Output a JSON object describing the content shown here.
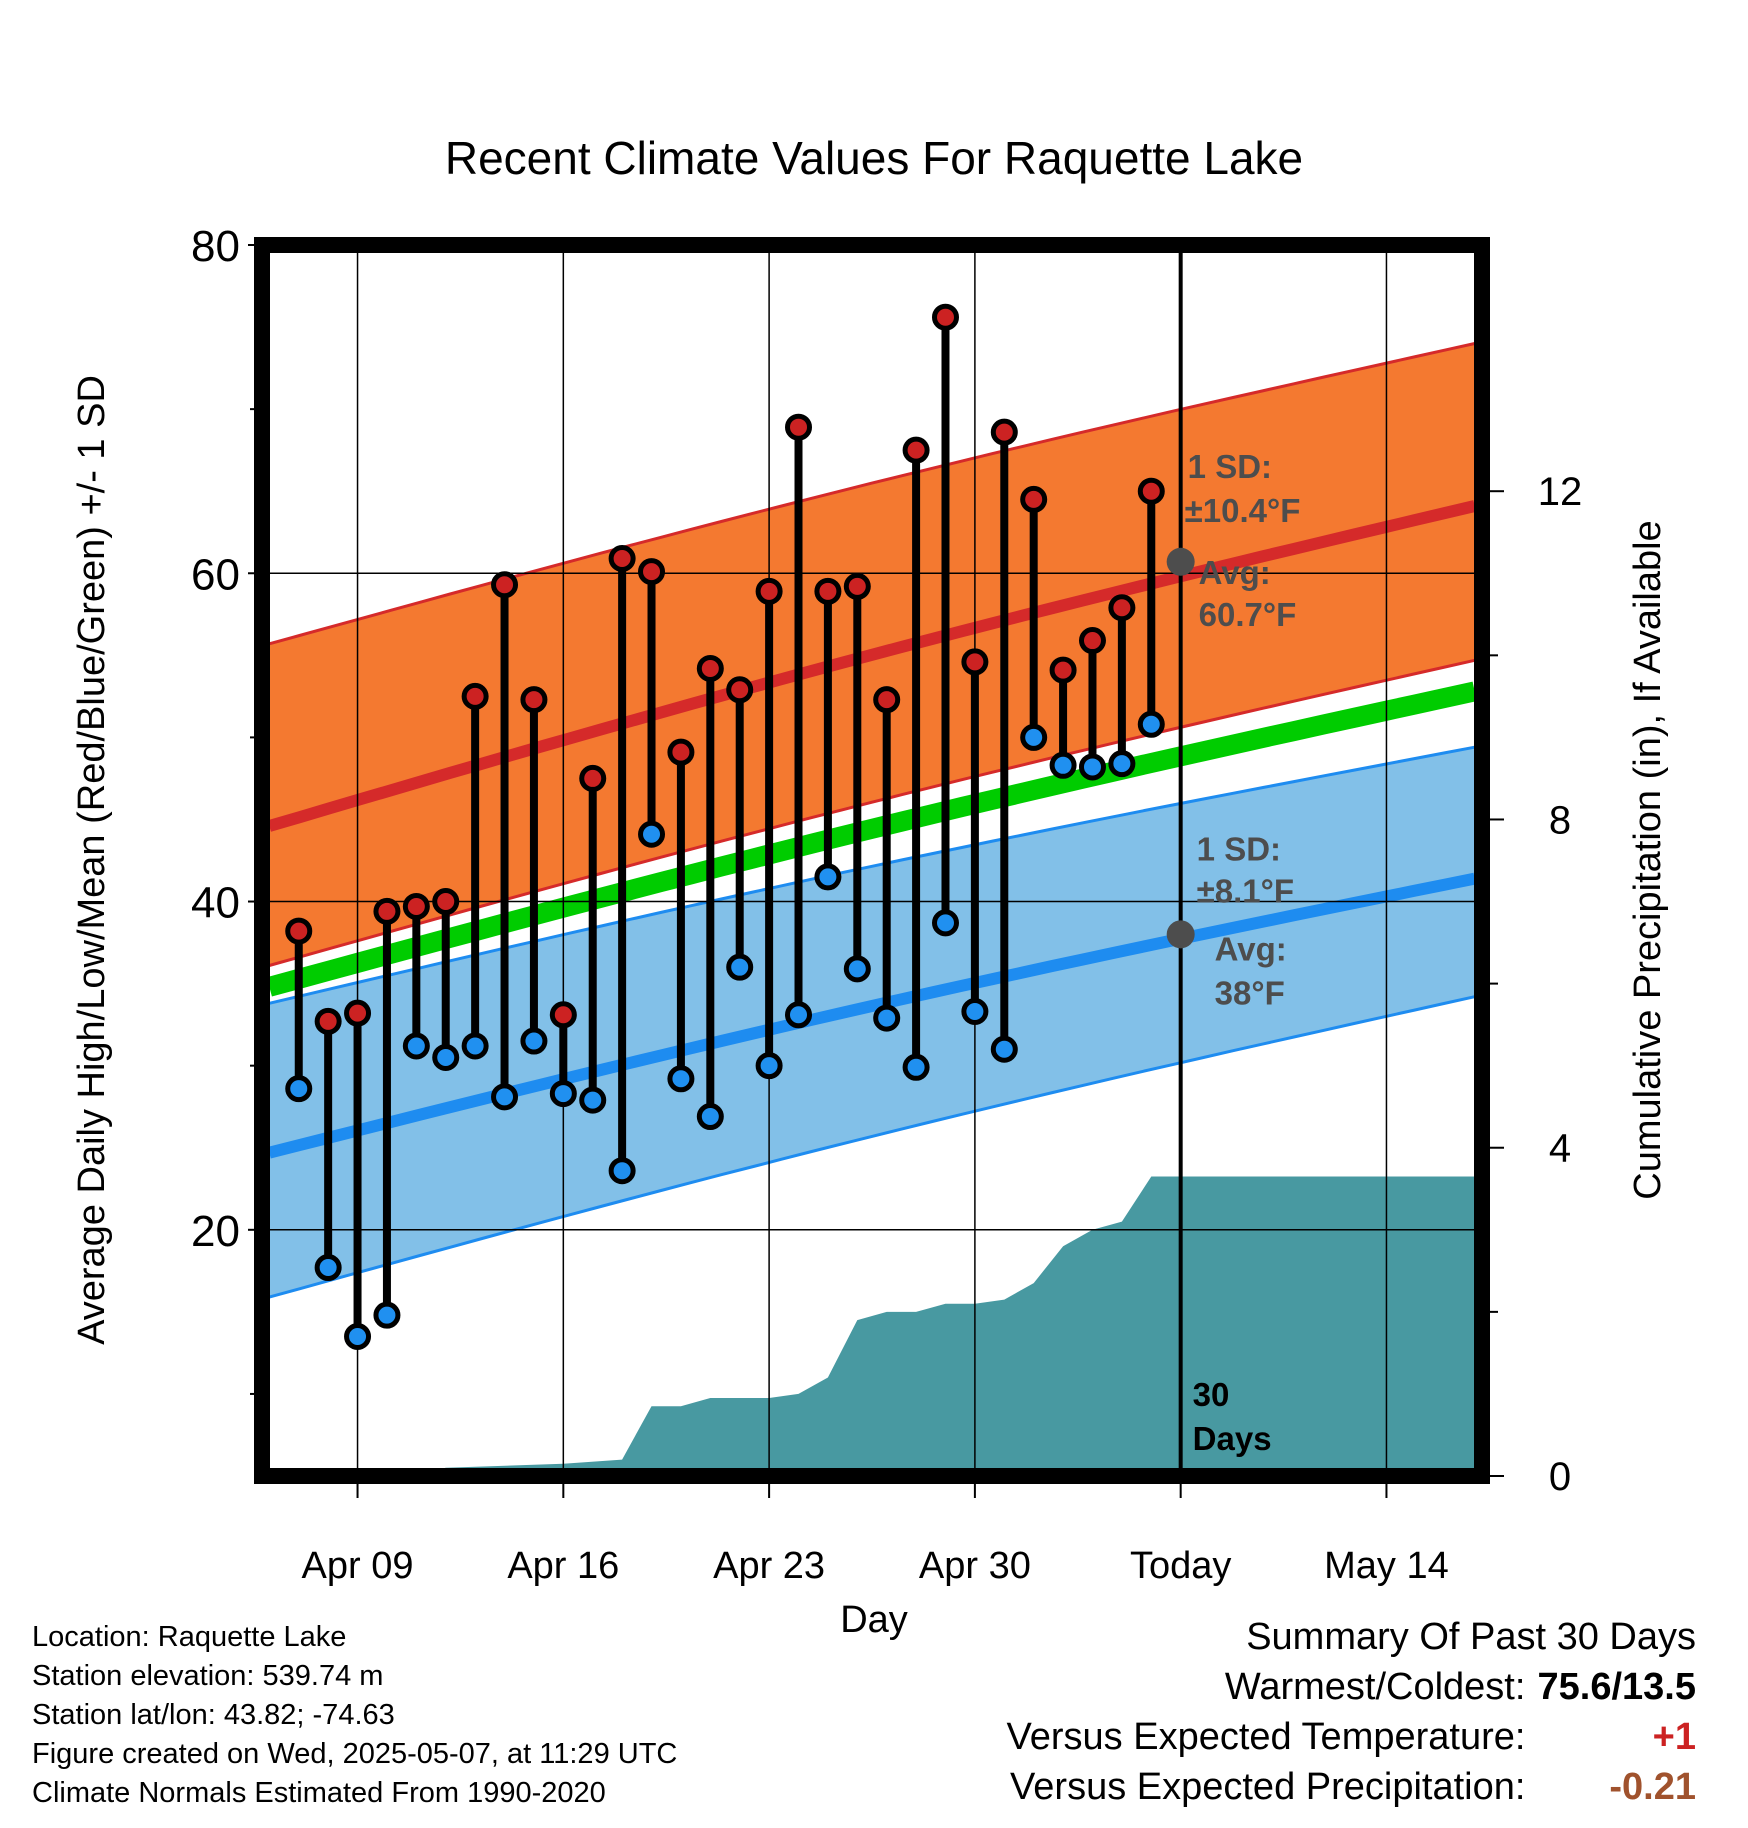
{
  "chart_data": {
    "type": "line",
    "title": "Recent Climate Values For Raquette Lake",
    "xlabel": "Day",
    "ylabel": "Average Daily High/Low/Mean (Red/Blue/Green) +/- 1 SD",
    "y2label": "Cumulative Precipitation (in), If Available",
    "ylim": [
      5,
      80
    ],
    "y_ticks": [
      "20",
      "40",
      "60",
      "80"
    ],
    "y2lim": [
      0,
      15
    ],
    "y2_ticks": [
      "0",
      "4",
      "8",
      "12"
    ],
    "x_tick_labels": [
      "Apr 09",
      "Apr 16",
      "Apr 23",
      "Apr 30",
      "Today",
      "May 14"
    ],
    "days_observed": [
      "2025-04-07",
      "2025-04-08",
      "2025-04-09",
      "2025-04-10",
      "2025-04-11",
      "2025-04-12",
      "2025-04-13",
      "2025-04-14",
      "2025-04-15",
      "2025-04-16",
      "2025-04-17",
      "2025-04-18",
      "2025-04-19",
      "2025-04-20",
      "2025-04-21",
      "2025-04-22",
      "2025-04-23",
      "2025-04-24",
      "2025-04-25",
      "2025-04-26",
      "2025-04-27",
      "2025-04-28",
      "2025-04-29",
      "2025-04-30",
      "2025-05-01",
      "2025-05-02",
      "2025-05-03",
      "2025-05-04",
      "2025-05-05",
      "2025-05-06"
    ],
    "daily_high": [
      38.2,
      32.7,
      33.2,
      39.4,
      39.7,
      40.0,
      52.5,
      59.3,
      52.3,
      33.1,
      47.5,
      60.9,
      60.1,
      49.1,
      54.2,
      52.9,
      58.9,
      68.9,
      58.9,
      59.2,
      52.3,
      67.5,
      75.6,
      54.6,
      68.6,
      64.5,
      54.1,
      55.9,
      57.9,
      65.0
    ],
    "daily_low": [
      28.6,
      17.7,
      13.5,
      14.8,
      31.2,
      30.5,
      31.2,
      28.1,
      31.5,
      28.3,
      27.9,
      23.6,
      44.1,
      29.2,
      26.9,
      36.0,
      30.0,
      33.1,
      41.5,
      35.9,
      32.9,
      29.9,
      38.7,
      33.3,
      31.0,
      50.0,
      48.3,
      48.2,
      48.4,
      50.8
    ],
    "normal_days": [
      "2025-04-06",
      "2025-05-17"
    ],
    "normal_high": [
      44.6,
      64.1
    ],
    "normal_high_sd_upper": [
      55.7,
      74.0
    ],
    "normal_high_sd_lower": [
      36.1,
      54.7
    ],
    "normal_mean": [
      34.8,
      52.8
    ],
    "normal_low": [
      24.7,
      41.4
    ],
    "normal_low_sd_upper": [
      33.8,
      49.4
    ],
    "normal_low_sd_lower": [
      15.9,
      34.2
    ],
    "precip_days": [
      "2025-04-06",
      "2025-04-11",
      "2025-04-12",
      "2025-04-16",
      "2025-04-18",
      "2025-04-19",
      "2025-04-20",
      "2025-04-21",
      "2025-04-22",
      "2025-04-23",
      "2025-04-24",
      "2025-04-25",
      "2025-04-26",
      "2025-04-27",
      "2025-04-28",
      "2025-04-29",
      "2025-04-30",
      "2025-05-01",
      "2025-05-02",
      "2025-05-03",
      "2025-05-04",
      "2025-05-05",
      "2025-05-06",
      "2025-05-17"
    ],
    "precip_cumulative": [
      0.0,
      0.0,
      0.1,
      0.15,
      0.2,
      0.85,
      0.85,
      0.95,
      0.95,
      0.95,
      1.0,
      1.2,
      1.9,
      2.0,
      2.0,
      2.1,
      2.1,
      2.15,
      2.35,
      2.8,
      3.0,
      3.1,
      3.65,
      3.65
    ],
    "high_annotation": {
      "sd_label": "1 SD:",
      "sd_value": "±10.4°F",
      "avg_label": "Avg:",
      "avg_value": "60.7°F",
      "avg": 60.7
    },
    "low_annotation": {
      "sd_label": "1 SD:",
      "sd_value": "±8.1°F",
      "avg_label": "Avg:",
      "avg_value": "38°F",
      "avg": 38.0
    },
    "period_label": [
      "30",
      "Days"
    ],
    "colors": {
      "high_band": "#f47930",
      "high_line": "#d52a2a",
      "low_band": "#82c0e8",
      "low_line": "#1e8cf0",
      "mean_line": "#00cc00",
      "precip": "#4899a1",
      "high_dot": "#cc2222",
      "low_dot": "#2090f0",
      "annotation": "#4d4d4d"
    }
  },
  "info": {
    "location": "Location: Raquette Lake",
    "elevation": "Station elevation: 539.74 m",
    "latlon": "Station lat/lon: 43.82; -74.63",
    "created": "Figure created on Wed, 2025-05-07, at 11:29 UTC",
    "normals": "Climate Normals Estimated From 1990-2020"
  },
  "summary": {
    "title": "Summary Of Past 30 Days",
    "warm_cold_label": "Warmest/Coldest:",
    "warm_cold_value": "75.6/13.5",
    "temp_label": "Versus Expected Temperature:",
    "temp_value": "+1",
    "temp_color": "#cc2222",
    "precip_label": "Versus Expected Precipitation:",
    "precip_value": "-0.21",
    "precip_color": "#a0522d"
  }
}
